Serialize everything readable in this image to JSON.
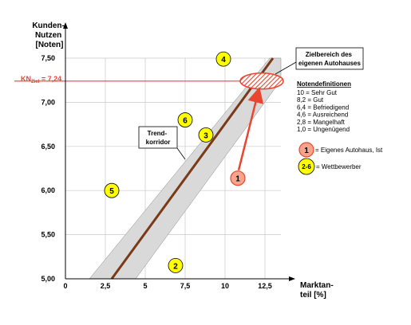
{
  "colors": {
    "trend_line": "#7a3a18",
    "corridor_fill": "#d9d9d9",
    "grid": "#c8c8c8",
    "target_red": "#e8462f",
    "competitor_yellow": "#ffff00",
    "own_fill": "#f4a58c"
  },
  "chart_data": {
    "type": "scatter",
    "ylabel": "Kunden-\nNutzen\n[Noten]",
    "xlabel": "Marktan-\nteil [%]",
    "xlim": [
      0,
      13.5
    ],
    "ylim": [
      5.0,
      7.5
    ],
    "x_ticks": [
      "0",
      "2,5",
      "5",
      "7,5",
      "10",
      "12,5"
    ],
    "x_tick_values": [
      0,
      2.5,
      5,
      7.5,
      10,
      12.5
    ],
    "y_ticks": [
      "5,00",
      "5,50",
      "6,00",
      "6,50",
      "7,00",
      "7,50"
    ],
    "y_tick_values": [
      5.0,
      5.5,
      6.0,
      6.5,
      7.0,
      7.5
    ],
    "grid": true,
    "trend_line": {
      "x": [
        2.9,
        13.0
      ],
      "y": [
        5.0,
        7.5
      ]
    },
    "corridor": {
      "lower": [
        [
          4.4,
          5.0
        ],
        [
          13.5,
          7.25
        ]
      ],
      "upper": [
        [
          1.5,
          5.0
        ],
        [
          12.8,
          7.5
        ]
      ]
    },
    "target_line": {
      "y": 7.24,
      "label_prefix": "KN",
      "label_sub": "Ziel",
      "label_suffix": " = 7,24"
    },
    "target_zone": {
      "x": 12.3,
      "y": 7.24,
      "label": "Zielbereich des\neigenen Autohauses"
    },
    "corridor_label": "Trend-\nkorridor",
    "points": [
      {
        "label": "1",
        "x": 10.8,
        "y": 6.14,
        "type": "own"
      },
      {
        "label": "2",
        "x": 6.9,
        "y": 5.15,
        "type": "competitor"
      },
      {
        "label": "3",
        "x": 8.8,
        "y": 6.63,
        "type": "competitor"
      },
      {
        "label": "4",
        "x": 9.9,
        "y": 7.49,
        "type": "competitor"
      },
      {
        "label": "5",
        "x": 2.9,
        "y": 6.0,
        "type": "competitor"
      },
      {
        "label": "6",
        "x": 7.5,
        "y": 6.8,
        "type": "competitor"
      }
    ],
    "legend": {
      "title": "Notendefinitionen",
      "items": [
        "10  = Sehr Gut",
        "8,2 = Gut",
        "6,4 = Befriedigend",
        "4,6 = Ausreichend",
        "2,8 = Mangelhaft",
        "1,0 = Ungenügend"
      ],
      "own_symbol": "1",
      "own_label": "= Eigenes Autohaus, Ist",
      "competitor_symbol": "2-6",
      "competitor_label": "= Wettbewerber"
    }
  }
}
